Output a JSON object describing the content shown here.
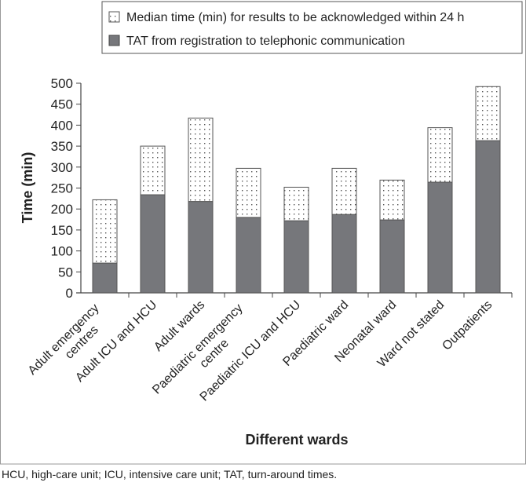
{
  "chart_data": {
    "type": "bar",
    "stacked": true,
    "xlabel": "Different wards",
    "ylabel": "Time (min)",
    "ylim": [
      0,
      500
    ],
    "yticks": [
      0,
      50,
      100,
      150,
      200,
      250,
      300,
      350,
      400,
      450,
      500
    ],
    "grid": false,
    "legend_position": "top",
    "categories": [
      "Adult emergency centres",
      "Adult ICU and HCU",
      "Adult wards",
      "Paediatric emergency centre",
      "Paediatric ICU and HCU",
      "Paediatric ward",
      "Neonatal ward",
      "Ward not stated",
      "Outpatients"
    ],
    "series": [
      {
        "name": "TAT from registration to telephonic communication",
        "fill": "dark-grey",
        "color": "#76777b",
        "values": [
          71,
          234,
          218,
          180,
          172,
          187,
          174,
          264,
          363
        ]
      },
      {
        "name": "Median time (min) for results to be acknowledged within 24 h",
        "fill": "dotted",
        "color": "#ffffff",
        "values": [
          151,
          116,
          199,
          117,
          80,
          110,
          95,
          130,
          129
        ]
      }
    ]
  },
  "caption": "HCU, high-care unit; ICU, intensive care unit; TAT, turn-around times."
}
